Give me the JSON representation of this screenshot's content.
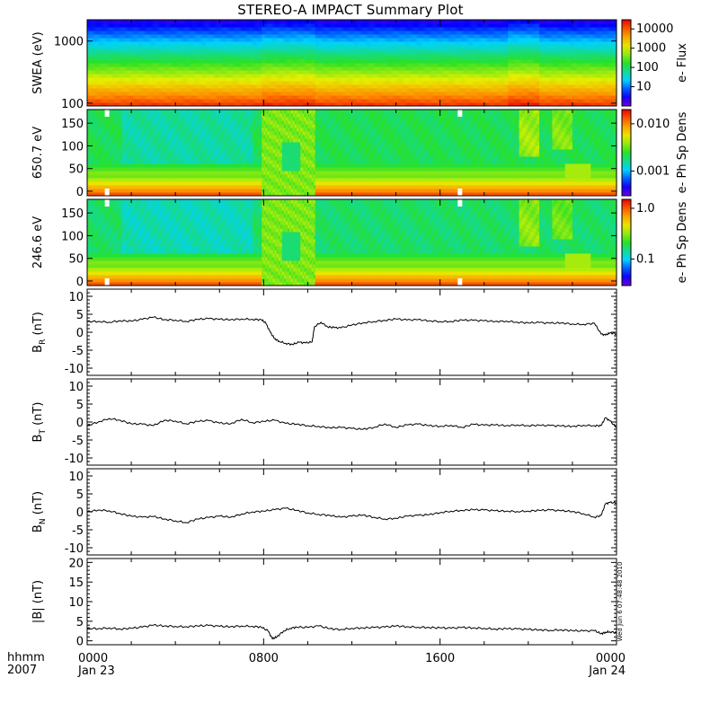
{
  "title": "STEREO-A IMPACT Summary Plot",
  "x_axis": {
    "units_label": "hhmm",
    "year_label": "2007",
    "ticks": [
      {
        "hour": 0,
        "time": "0000",
        "date": "Jan 23"
      },
      {
        "hour": 8,
        "time": "0800",
        "date": ""
      },
      {
        "hour": 16,
        "time": "1600",
        "date": ""
      },
      {
        "hour": 24,
        "time": "0000",
        "date": "Jan 24"
      }
    ],
    "range_hours": [
      0,
      24
    ]
  },
  "timestamp_text": "Wed Jun  6 07:48:48 2010",
  "chart_data": [
    {
      "type": "heatmap",
      "panel": "swea",
      "ylabel": "SWEA (eV)",
      "y_scale": "log",
      "ylim": [
        90,
        2200
      ],
      "y_ticks": [
        {
          "v": 100,
          "label": "100"
        },
        {
          "v": 1000,
          "label": "1000"
        }
      ],
      "colorbar": {
        "label": "e- Flux",
        "scale": "log",
        "range": [
          1,
          30000
        ],
        "ticks": [
          {
            "v": 10,
            "label": "10"
          },
          {
            "v": 100,
            "label": "100"
          },
          {
            "v": 1000,
            "label": "1000"
          },
          {
            "v": 10000,
            "label": "10000"
          }
        ]
      }
    },
    {
      "type": "heatmap",
      "panel": "pad650",
      "ylabel": "650.7 eV",
      "ylim": [
        -10,
        180
      ],
      "y_ticks": [
        {
          "v": 0,
          "label": "0"
        },
        {
          "v": 50,
          "label": "50"
        },
        {
          "v": 100,
          "label": "100"
        },
        {
          "v": 150,
          "label": "150"
        }
      ],
      "colorbar": {
        "label": "e- Ph Sp Dens",
        "scale": "log",
        "range": [
          0.0003,
          0.02
        ],
        "ticks": [
          {
            "v": 0.001,
            "label": "0.001"
          },
          {
            "v": 0.01,
            "label": "0.010"
          }
        ]
      }
    },
    {
      "type": "heatmap",
      "panel": "pad246",
      "ylabel": "246.6 eV",
      "ylim": [
        -10,
        180
      ],
      "y_ticks": [
        {
          "v": 0,
          "label": "0"
        },
        {
          "v": 50,
          "label": "50"
        },
        {
          "v": 100,
          "label": "100"
        },
        {
          "v": 150,
          "label": "150"
        }
      ],
      "colorbar": {
        "label": "e- Ph Sp Dens",
        "scale": "log",
        "range": [
          0.03,
          1.5
        ],
        "ticks": [
          {
            "v": 0.1,
            "label": "0.1"
          },
          {
            "v": 1.0,
            "label": "1.0"
          }
        ]
      }
    },
    {
      "type": "line",
      "panel": "br",
      "ylabel": "B_R (nT)",
      "ylabel_main": "B",
      "ylabel_sub": "R",
      "ylabel_tail": " (nT)",
      "ylim": [
        -12,
        12
      ],
      "y_ticks": [
        -10,
        -5,
        0,
        5,
        10
      ],
      "x": [
        0,
        0.5,
        1,
        1.5,
        2,
        2.5,
        3,
        3.5,
        4,
        4.5,
        5,
        5.5,
        6,
        6.5,
        7,
        7.5,
        7.9,
        8.1,
        8.3,
        8.5,
        8.7,
        9,
        9.3,
        9.6,
        9.9,
        10.2,
        10.3,
        10.6,
        10.9,
        11.2,
        11.5,
        12,
        12.5,
        13,
        13.5,
        14,
        14.5,
        15,
        15.5,
        16,
        16.5,
        17,
        17.5,
        18,
        18.5,
        19,
        19.5,
        20,
        20.5,
        21,
        21.5,
        22,
        22.5,
        23,
        23.3,
        23.5,
        23.7,
        24
      ],
      "y": [
        3,
        3,
        2.8,
        3.2,
        3.1,
        3.6,
        4.2,
        3.5,
        3.4,
        3,
        3.6,
        3.8,
        3.6,
        3.5,
        3.7,
        3.6,
        3.5,
        2.5,
        0,
        -1.8,
        -2.5,
        -3.1,
        -3.4,
        -2.8,
        -3,
        -2.7,
        1.5,
        2.8,
        1.5,
        1.3,
        1.2,
        2,
        2.6,
        3,
        3.3,
        3.7,
        3.4,
        3.5,
        3.2,
        3,
        3,
        3.4,
        3.3,
        3.2,
        3,
        3.1,
        2.8,
        2.6,
        2.7,
        2.5,
        2.6,
        2.3,
        2.2,
        2.5,
        -0.5,
        -0.8,
        -0.2,
        -0.4
      ]
    },
    {
      "type": "line",
      "panel": "bt",
      "ylabel": "B_T (nT)",
      "ylabel_main": "B",
      "ylabel_sub": "T",
      "ylabel_tail": " (nT)",
      "ylim": [
        -12,
        12
      ],
      "y_ticks": [
        -10,
        -5,
        0,
        5,
        10
      ],
      "x": [
        0,
        0.5,
        1,
        1.5,
        2,
        2.5,
        3,
        3.5,
        4,
        4.5,
        5,
        5.5,
        6,
        6.5,
        7,
        7.5,
        8,
        8.5,
        9,
        9.5,
        10,
        10.5,
        11,
        11.5,
        12,
        12.5,
        13,
        13.5,
        14,
        14.5,
        15,
        15.5,
        16,
        16.5,
        17,
        17.5,
        18,
        18.5,
        19,
        19.5,
        20,
        20.5,
        21,
        21.5,
        22,
        22.5,
        23,
        23.3,
        23.5,
        23.7,
        24
      ],
      "y": [
        -1,
        0,
        1,
        0.5,
        -0.5,
        -0.6,
        -1,
        0.5,
        0.3,
        -0.5,
        0.2,
        0.4,
        -0.3,
        -0.5,
        0.8,
        -0.2,
        0.2,
        0.5,
        -0.4,
        -0.6,
        -1,
        -1.2,
        -1.6,
        -1.5,
        -1.8,
        -2,
        -1.5,
        -0.5,
        -1.5,
        -0.8,
        -0.6,
        -1,
        -1.2,
        -0.9,
        -1.5,
        -0.6,
        -0.9,
        -0.8,
        -1,
        -0.8,
        -1,
        -0.9,
        -1,
        -1.1,
        -1.2,
        -0.9,
        -1,
        -1,
        1.2,
        0.3,
        -1.5
      ]
    },
    {
      "type": "line",
      "panel": "bn",
      "ylabel": "B_N (nT)",
      "ylabel_main": "B",
      "ylabel_sub": "N",
      "ylabel_tail": " (nT)",
      "ylim": [
        -12,
        12
      ],
      "y_ticks": [
        -10,
        -5,
        0,
        5,
        10
      ],
      "x": [
        0,
        0.5,
        1,
        1.5,
        2,
        2.5,
        3,
        3.5,
        4,
        4.5,
        5,
        5.5,
        6,
        6.5,
        7,
        7.5,
        8,
        8.5,
        9,
        9.5,
        10,
        10.5,
        11,
        11.5,
        12,
        12.5,
        13,
        13.5,
        14,
        14.5,
        15,
        15.5,
        16,
        16.5,
        17,
        17.5,
        18,
        18.5,
        19,
        19.5,
        20,
        20.5,
        21,
        21.5,
        22,
        22.5,
        23,
        23.3,
        23.5,
        23.7,
        24
      ],
      "y": [
        0,
        0.5,
        0.3,
        -0.5,
        -1.2,
        -1.5,
        -1.3,
        -2,
        -2.5,
        -3,
        -2,
        -1.6,
        -1.2,
        -1.5,
        -0.6,
        0,
        0.2,
        0.6,
        1,
        0.4,
        -0.3,
        -0.7,
        -1,
        -1.5,
        -1.2,
        -0.9,
        -1.5,
        -2,
        -1.8,
        -1.2,
        -1,
        -0.8,
        -0.2,
        0.2,
        0.4,
        0.6,
        0.5,
        0.3,
        0.2,
        0.1,
        0.2,
        0.4,
        0.5,
        0.3,
        0.1,
        -0.5,
        -1.5,
        -1,
        2.2,
        2.6,
        2.5
      ]
    },
    {
      "type": "line",
      "panel": "bmag",
      "ylabel": "|B| (nT)",
      "ylim": [
        -1,
        21
      ],
      "y_ticks": [
        0,
        5,
        10,
        15,
        20
      ],
      "x": [
        0,
        0.5,
        1,
        1.5,
        2,
        2.5,
        3,
        3.5,
        4,
        4.5,
        5,
        5.5,
        6,
        6.5,
        7,
        7.5,
        7.9,
        8.2,
        8.4,
        8.6,
        8.9,
        9.2,
        9.5,
        10,
        10.5,
        11,
        11.5,
        12,
        12.5,
        13,
        13.5,
        14,
        14.5,
        15,
        15.5,
        16,
        16.5,
        17,
        17.5,
        18,
        18.5,
        19,
        19.5,
        20,
        20.5,
        21,
        21.5,
        22,
        22.5,
        23,
        23.3,
        23.5,
        23.7,
        24
      ],
      "y": [
        3.2,
        3.1,
        3.3,
        3,
        3.2,
        3.5,
        4,
        3.8,
        3.7,
        3.6,
        3.8,
        3.9,
        3.7,
        3.6,
        3.8,
        3.7,
        3.5,
        2.5,
        0.5,
        1,
        2.5,
        3.2,
        3.5,
        3.4,
        3.8,
        3.1,
        2.9,
        3.2,
        3.3,
        3.4,
        3.5,
        3.8,
        3.6,
        3.5,
        3.4,
        3.3,
        3.2,
        3.4,
        3.3,
        3.2,
        3,
        3.1,
        3,
        2.9,
        2.8,
        2.7,
        2.8,
        2.6,
        2.5,
        2.6,
        1.8,
        2.2,
        2.3,
        2.1
      ]
    }
  ]
}
